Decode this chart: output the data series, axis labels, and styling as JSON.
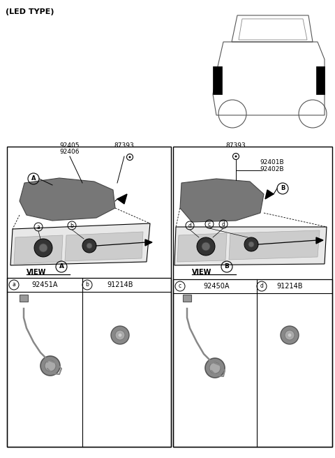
{
  "title": "(LED TYPE)",
  "bg_color": "#ffffff",
  "fig_width": 4.8,
  "fig_height": 6.56,
  "dpi": 100,
  "left_panel": {
    "part_numbers_top": [
      "92405",
      "92406"
    ],
    "part_number_right": "87393",
    "view_label": "A",
    "parts_table": [
      {
        "circle_label": "a",
        "part_number": "92451A"
      },
      {
        "circle_label": "b",
        "part_number": "91214B"
      }
    ]
  },
  "right_panel": {
    "part_number_top": "87393",
    "part_numbers_right": [
      "92401B",
      "92402B"
    ],
    "view_label": "B",
    "parts_table": [
      {
        "circle_label": "c",
        "part_number": "92450A"
      },
      {
        "circle_label": "d",
        "part_number": "91214B"
      }
    ]
  }
}
